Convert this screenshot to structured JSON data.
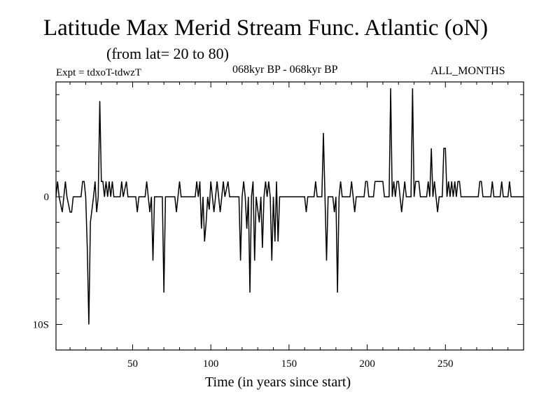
{
  "header": {
    "title": "Latitude Max Merid Stream Func. Atlantic (oN)",
    "subtitle": "(from lat= 20 to 80)",
    "experiment": "Expt = tdxoT-tdwzT",
    "period": "068kyr BP - 068kyr BP",
    "months": "ALL_MONTHS"
  },
  "chart_data": {
    "type": "line",
    "title": "Latitude Max Merid Stream Func. Atlantic (oN)",
    "subtitle": "(from lat= 20 to 80)",
    "xlabel": "Time (in years since start)",
    "ylabel": "",
    "xlim": [
      1,
      300
    ],
    "ylim": [
      -12,
      9
    ],
    "x_ticks": [
      50,
      100,
      150,
      200,
      250
    ],
    "y_ticks": [
      {
        "value": 0,
        "label": "0"
      },
      {
        "value": -10,
        "label": "10S"
      }
    ],
    "grid": false,
    "legend": "none",
    "line_color": "#000000",
    "series": [
      {
        "points": [
          [
            1,
            0
          ],
          [
            2,
            1.2
          ],
          [
            3,
            0
          ],
          [
            5,
            -1.2
          ],
          [
            6,
            0
          ],
          [
            7,
            1.2
          ],
          [
            8,
            0
          ],
          [
            10,
            -1.2
          ],
          [
            11,
            -1.2
          ],
          [
            12,
            0
          ],
          [
            17,
            0
          ],
          [
            18,
            1.2
          ],
          [
            19,
            1.2
          ],
          [
            20,
            0
          ],
          [
            21,
            -4
          ],
          [
            22,
            -10
          ],
          [
            23,
            -2
          ],
          [
            24,
            -1
          ],
          [
            25,
            0
          ],
          [
            26,
            1.2
          ],
          [
            27,
            -1.2
          ],
          [
            28,
            0
          ],
          [
            29,
            7.5
          ],
          [
            30,
            1.2
          ],
          [
            31,
            1.2
          ],
          [
            32,
            0
          ],
          [
            33,
            1.2
          ],
          [
            34,
            0
          ],
          [
            35,
            1.2
          ],
          [
            36,
            0
          ],
          [
            37,
            1.2
          ],
          [
            38,
            0
          ],
          [
            42,
            0
          ],
          [
            43,
            1.2
          ],
          [
            44,
            0
          ],
          [
            46,
            1.2
          ],
          [
            47,
            0
          ],
          [
            52,
            0
          ],
          [
            53,
            -1.2
          ],
          [
            54,
            0
          ],
          [
            58,
            0
          ],
          [
            59,
            1.2
          ],
          [
            60,
            0
          ],
          [
            61,
            -1.2
          ],
          [
            62,
            0
          ],
          [
            63,
            -5
          ],
          [
            64,
            0
          ],
          [
            69,
            0
          ],
          [
            70,
            -7.5
          ],
          [
            71,
            0
          ],
          [
            77,
            0
          ],
          [
            78,
            -1.2
          ],
          [
            79,
            0
          ],
          [
            80,
            1.2
          ],
          [
            81,
            0
          ],
          [
            90,
            0
          ],
          [
            91,
            1.2
          ],
          [
            92,
            0
          ],
          [
            93,
            1.2
          ],
          [
            94,
            -2.5
          ],
          [
            95,
            0
          ],
          [
            96,
            -3.5
          ],
          [
            97,
            -2
          ],
          [
            98,
            0
          ],
          [
            99,
            -1
          ],
          [
            100,
            1.2
          ],
          [
            101,
            0
          ],
          [
            102,
            -1.2
          ],
          [
            103,
            0
          ],
          [
            104,
            1.2
          ],
          [
            105,
            0
          ],
          [
            106,
            -1.2
          ],
          [
            107,
            0
          ],
          [
            108,
            1.2
          ],
          [
            109,
            0
          ],
          [
            111,
            1.2
          ],
          [
            112,
            0
          ],
          [
            118,
            0
          ],
          [
            119,
            -5
          ],
          [
            120,
            0
          ],
          [
            121,
            1.2
          ],
          [
            122,
            0
          ],
          [
            123,
            -2.5
          ],
          [
            124,
            0
          ],
          [
            125,
            -7.5
          ],
          [
            126,
            0
          ],
          [
            127,
            1.2
          ],
          [
            128,
            -5
          ],
          [
            129,
            0
          ],
          [
            131,
            -2
          ],
          [
            132,
            0
          ],
          [
            133,
            -4
          ],
          [
            134,
            0
          ],
          [
            135,
            1.2
          ],
          [
            136,
            0
          ],
          [
            137,
            1.2
          ],
          [
            138,
            0
          ],
          [
            139,
            -5
          ],
          [
            140,
            0
          ],
          [
            141,
            -3.5
          ],
          [
            142,
            1.2
          ],
          [
            143,
            -3.5
          ],
          [
            144,
            0
          ],
          [
            160,
            0
          ],
          [
            161,
            -1.2
          ],
          [
            162,
            0
          ],
          [
            166,
            0
          ],
          [
            167,
            1.2
          ],
          [
            168,
            0
          ],
          [
            171,
            0
          ],
          [
            172,
            5
          ],
          [
            173,
            0
          ],
          [
            174,
            -5
          ],
          [
            175,
            0
          ],
          [
            178,
            0
          ],
          [
            179,
            -1.2
          ],
          [
            180,
            0
          ],
          [
            181,
            -7.5
          ],
          [
            182,
            0
          ],
          [
            183,
            1.2
          ],
          [
            184,
            0
          ],
          [
            189,
            0
          ],
          [
            190,
            1.2
          ],
          [
            191,
            0
          ],
          [
            192,
            -1.2
          ],
          [
            193,
            0
          ],
          [
            198,
            0
          ],
          [
            199,
            1.2
          ],
          [
            200,
            1.2
          ],
          [
            201,
            0
          ],
          [
            204,
            0
          ],
          [
            205,
            1.2
          ],
          [
            210,
            1.2
          ],
          [
            211,
            0
          ],
          [
            214,
            0
          ],
          [
            215,
            8.5
          ],
          [
            216,
            0
          ],
          [
            217,
            1.2
          ],
          [
            218,
            0
          ],
          [
            219,
            1.2
          ],
          [
            220,
            1.2
          ],
          [
            221,
            0
          ],
          [
            222,
            -1.2
          ],
          [
            223,
            0
          ],
          [
            224,
            1.2
          ],
          [
            225,
            0
          ],
          [
            228,
            0
          ],
          [
            229,
            8.5
          ],
          [
            230,
            0
          ],
          [
            231,
            1.2
          ],
          [
            233,
            1.2
          ],
          [
            234,
            0
          ],
          [
            238,
            0
          ],
          [
            239,
            1.2
          ],
          [
            240,
            0
          ],
          [
            241,
            3.8
          ],
          [
            242,
            0
          ],
          [
            243,
            1.2
          ],
          [
            244,
            0
          ],
          [
            245,
            -1.2
          ],
          [
            246,
            0
          ],
          [
            248,
            0
          ],
          [
            249,
            3.8
          ],
          [
            250,
            3.8
          ],
          [
            251,
            0
          ],
          [
            252,
            1.2
          ],
          [
            253,
            0
          ],
          [
            254,
            1.2
          ],
          [
            255,
            0
          ],
          [
            256,
            1.2
          ],
          [
            257,
            0
          ],
          [
            258,
            1.2
          ],
          [
            259,
            1.2
          ],
          [
            260,
            0
          ],
          [
            271,
            0
          ],
          [
            272,
            1.2
          ],
          [
            273,
            1.2
          ],
          [
            274,
            0
          ],
          [
            279,
            0
          ],
          [
            280,
            1.2
          ],
          [
            281,
            0
          ],
          [
            285,
            0
          ],
          [
            286,
            1.2
          ],
          [
            287,
            0
          ],
          [
            290,
            0
          ],
          [
            291,
            1.2
          ],
          [
            292,
            0
          ],
          [
            300,
            0
          ]
        ]
      }
    ]
  }
}
